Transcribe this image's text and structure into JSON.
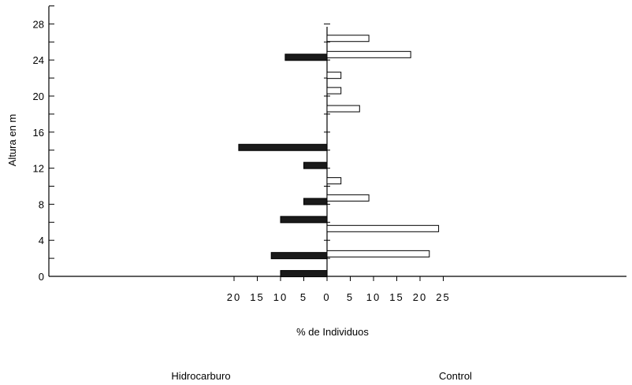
{
  "chart_data": {
    "type": "bar",
    "orientation": "horizontal-back-to-back",
    "ylabel": "Altura en m",
    "xlabel": "% de Individuos",
    "yticks": [
      "0",
      "4",
      "8",
      "12",
      "16",
      "20",
      "24",
      "28"
    ],
    "ylim": [
      0,
      30
    ],
    "xticks_left": [
      "20",
      "15",
      "10",
      "5",
      "0"
    ],
    "xticks_right": [
      "5",
      "10",
      "15",
      "20",
      "25"
    ],
    "xlim_left": [
      0,
      25
    ],
    "xlim_right": [
      0,
      25
    ],
    "grid": false,
    "colors": {
      "hidrocarburo": "#1a1a1a",
      "control": "#ffffff",
      "axis": "#000000"
    },
    "group_labels": {
      "left": "Hidrocarburo",
      "right": "Control"
    },
    "series": [
      {
        "name": "Hidrocarburo",
        "side": "left",
        "points": [
          {
            "altura": 0.3,
            "value": 10
          },
          {
            "altura": 2.3,
            "value": 12
          },
          {
            "altura": 6.3,
            "value": 10
          },
          {
            "altura": 8.3,
            "value": 5
          },
          {
            "altura": 12.3,
            "value": 5
          },
          {
            "altura": 14.3,
            "value": 19
          },
          {
            "altura": 24.3,
            "value": 9
          }
        ]
      },
      {
        "name": "Control",
        "side": "right",
        "points": [
          {
            "altura": 2.5,
            "value": 22
          },
          {
            "altura": 5.3,
            "value": 24
          },
          {
            "altura": 8.7,
            "value": 9
          },
          {
            "altura": 10.6,
            "value": 3
          },
          {
            "altura": 18.6,
            "value": 7
          },
          {
            "altura": 20.6,
            "value": 3
          },
          {
            "altura": 22.3,
            "value": 3
          },
          {
            "altura": 24.6,
            "value": 18
          },
          {
            "altura": 26.4,
            "value": 9
          }
        ]
      }
    ]
  }
}
